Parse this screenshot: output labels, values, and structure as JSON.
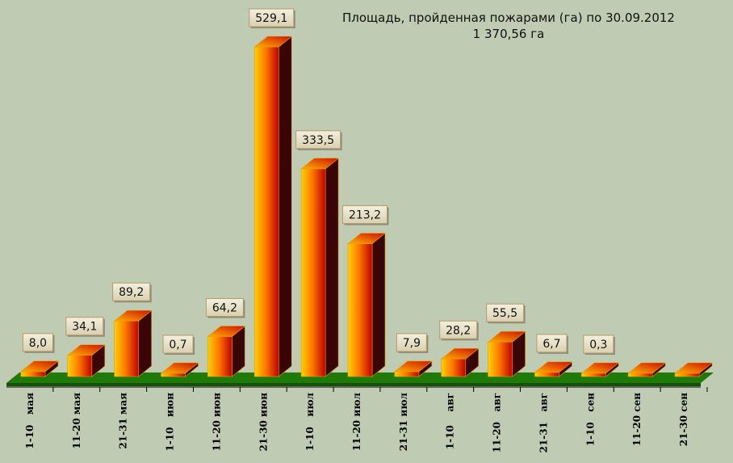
{
  "chart_data": {
    "type": "bar",
    "title": "Площадь, пройденная пожарами (га) по 30.09.2012",
    "subtitle": "1 370,56 га",
    "categories": [
      "1-10   мая",
      "11-20 мая",
      "21-31 мая",
      "1-10   июн",
      "11-20 июн",
      "21-30 июн",
      "1-10   июл",
      "11-20 июл",
      "21-31 июл",
      "1-10    авг",
      "11-20   авг",
      "21-31   авг",
      "1-10   сен",
      "11-20 сен",
      "21-30 сен"
    ],
    "values": [
      8.0,
      34.1,
      89.2,
      0.7,
      64.2,
      529.1,
      333.5,
      213.2,
      7.9,
      28.2,
      55.5,
      6.7,
      0.3,
      0,
      0
    ],
    "data_labels": [
      "8,0",
      "34,1",
      "89,2",
      "0,7",
      "64,2",
      "529,1",
      "333,5",
      "213,2",
      "7,9",
      "28,2",
      "55,5",
      "6,7",
      "0,3",
      "",
      ""
    ],
    "ylim": [
      0,
      529.1
    ],
    "grid": false,
    "legend": "none",
    "colors": {
      "background": "#c0cbb3",
      "floor": "#1f7a0a",
      "bar_light": "#ffd000",
      "bar_mid": "#ff6a00",
      "bar_dark": "#b00000",
      "bar_side": "#3a0505",
      "label_box": "#e8e2cc",
      "label_border": "#b59b6a"
    }
  }
}
